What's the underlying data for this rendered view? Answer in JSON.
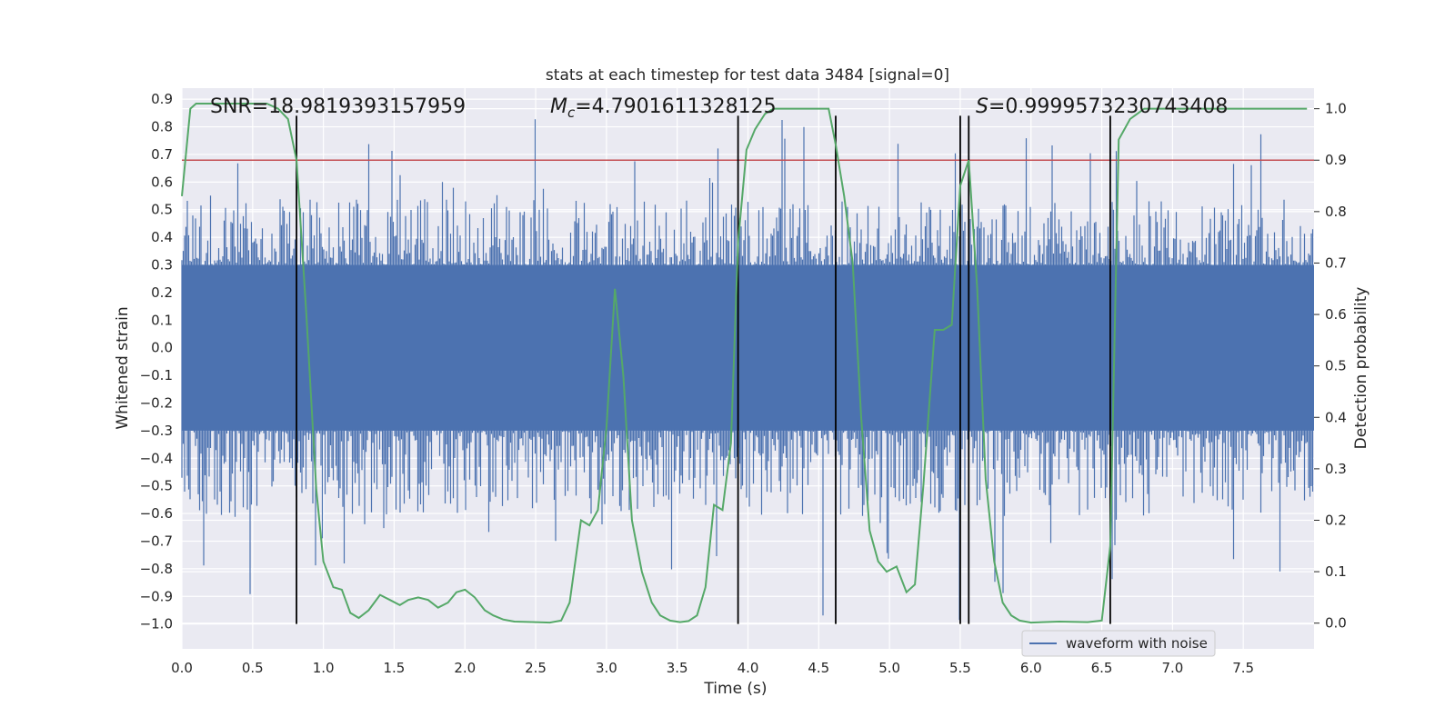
{
  "chart_data": {
    "type": "line",
    "title": "stats at each timestep for test data 3484 [signal=0]",
    "xlabel": "Time (s)",
    "ylabel": "Whitened strain",
    "ylabel_right": "Detection probability",
    "xlim": [
      0.0,
      8.0
    ],
    "ylim": [
      -1.09,
      0.94
    ],
    "ylim_right": [
      -0.05,
      1.04
    ],
    "x_ticks": [
      0.0,
      0.5,
      1.0,
      1.5,
      2.0,
      2.5,
      3.0,
      3.5,
      4.0,
      4.5,
      5.0,
      5.5,
      6.0,
      6.5,
      7.0,
      7.5
    ],
    "x_tick_labels": [
      "0.0",
      "0.5",
      "1.0",
      "1.5",
      "2.0",
      "2.5",
      "3.0",
      "3.5",
      "4.0",
      "4.5",
      "5.0",
      "5.5",
      "6.0",
      "6.5",
      "7.0",
      "7.5"
    ],
    "y_ticks": [
      -1.0,
      -0.9,
      -0.8,
      -0.7,
      -0.6,
      -0.5,
      -0.4,
      -0.3,
      -0.2,
      -0.1,
      0.0,
      0.1,
      0.2,
      0.3,
      0.4,
      0.5,
      0.6,
      0.7,
      0.8,
      0.9
    ],
    "y_tick_labels": [
      "−1.0",
      "−0.9",
      "−0.8",
      "−0.7",
      "−0.6",
      "−0.5",
      "−0.4",
      "−0.3",
      "−0.2",
      "−0.1",
      "0.0",
      "0.1",
      "0.2",
      "0.3",
      "0.4",
      "0.5",
      "0.6",
      "0.7",
      "0.8",
      "0.9"
    ],
    "y_right_ticks": [
      0.0,
      0.1,
      0.2,
      0.3,
      0.4,
      0.5,
      0.6,
      0.7,
      0.8,
      0.9,
      1.0
    ],
    "y_right_tick_labels": [
      "0.0",
      "0.1",
      "0.2",
      "0.3",
      "0.4",
      "0.5",
      "0.6",
      "0.7",
      "0.8",
      "0.9",
      "1.0"
    ],
    "threshold": 0.9,
    "vlines": [
      0.81,
      3.93,
      4.62,
      5.5,
      5.56,
      6.56
    ],
    "vline_range": [
      -1.0,
      0.84
    ],
    "annotations": {
      "snr": "SNR=18.9819393157959",
      "mc_symbol": "M",
      "mc_subscript": "c",
      "mc_value": "=4.7901611328125",
      "s_symbol": "S",
      "s_value": "=0.9999573230743408"
    },
    "legend": {
      "label": "waveform with noise",
      "location": "lower-right"
    },
    "colors": {
      "waveform": "#4c72b0",
      "probability": "#55a868",
      "threshold": "#c44e52",
      "vline": "#000000",
      "plot_background": "#eaeaf2",
      "grid": "#ffffff"
    },
    "waveform": {
      "name": "waveform with noise",
      "amplitude_band": [
        -0.3,
        0.3
      ],
      "spike_range": [
        -1.0,
        0.83
      ]
    },
    "probability": {
      "name": "Detection probability",
      "x": [
        0.0,
        0.06,
        0.1,
        0.2,
        0.3,
        0.4,
        0.5,
        0.6,
        0.68,
        0.75,
        0.81,
        0.88,
        0.95,
        1.0,
        1.07,
        1.13,
        1.19,
        1.25,
        1.32,
        1.4,
        1.47,
        1.54,
        1.6,
        1.67,
        1.74,
        1.81,
        1.88,
        1.94,
        2.0,
        2.07,
        2.14,
        2.2,
        2.27,
        2.35,
        2.5,
        2.6,
        2.68,
        2.74,
        2.82,
        2.88,
        2.94,
        3.0,
        3.06,
        3.12,
        3.18,
        3.25,
        3.32,
        3.38,
        3.45,
        3.52,
        3.58,
        3.64,
        3.7,
        3.76,
        3.82,
        3.88,
        3.93,
        3.99,
        4.05,
        4.12,
        4.18,
        4.25,
        4.35,
        4.5,
        4.57,
        4.62,
        4.68,
        4.74,
        4.8,
        4.86,
        4.92,
        4.98,
        5.05,
        5.12,
        5.18,
        5.24,
        5.32,
        5.38,
        5.44,
        5.5,
        5.56,
        5.62,
        5.68,
        5.74,
        5.8,
        5.86,
        5.92,
        6.0,
        6.2,
        6.4,
        6.5,
        6.56,
        6.62,
        6.7,
        6.8,
        7.0,
        7.5,
        7.95
      ],
      "values": [
        0.83,
        1.0,
        1.01,
        1.01,
        1.01,
        1.01,
        1.01,
        1.01,
        1.0,
        0.98,
        0.9,
        0.6,
        0.26,
        0.12,
        0.07,
        0.065,
        0.02,
        0.01,
        0.025,
        0.055,
        0.045,
        0.035,
        0.045,
        0.05,
        0.045,
        0.03,
        0.04,
        0.06,
        0.065,
        0.05,
        0.025,
        0.015,
        0.007,
        0.003,
        0.002,
        0.001,
        0.005,
        0.04,
        0.2,
        0.19,
        0.22,
        0.38,
        0.65,
        0.48,
        0.2,
        0.1,
        0.04,
        0.015,
        0.005,
        0.002,
        0.004,
        0.015,
        0.07,
        0.23,
        0.22,
        0.35,
        0.74,
        0.92,
        0.96,
        0.99,
        1.0,
        1.0,
        1.0,
        1.0,
        1.0,
        0.93,
        0.83,
        0.7,
        0.4,
        0.18,
        0.12,
        0.1,
        0.11,
        0.06,
        0.075,
        0.27,
        0.57,
        0.57,
        0.58,
        0.85,
        0.9,
        0.65,
        0.28,
        0.12,
        0.04,
        0.015,
        0.005,
        0.001,
        0.003,
        0.002,
        0.005,
        0.15,
        0.94,
        0.98,
        1.0,
        1.0,
        1.0,
        1.0
      ]
    }
  }
}
